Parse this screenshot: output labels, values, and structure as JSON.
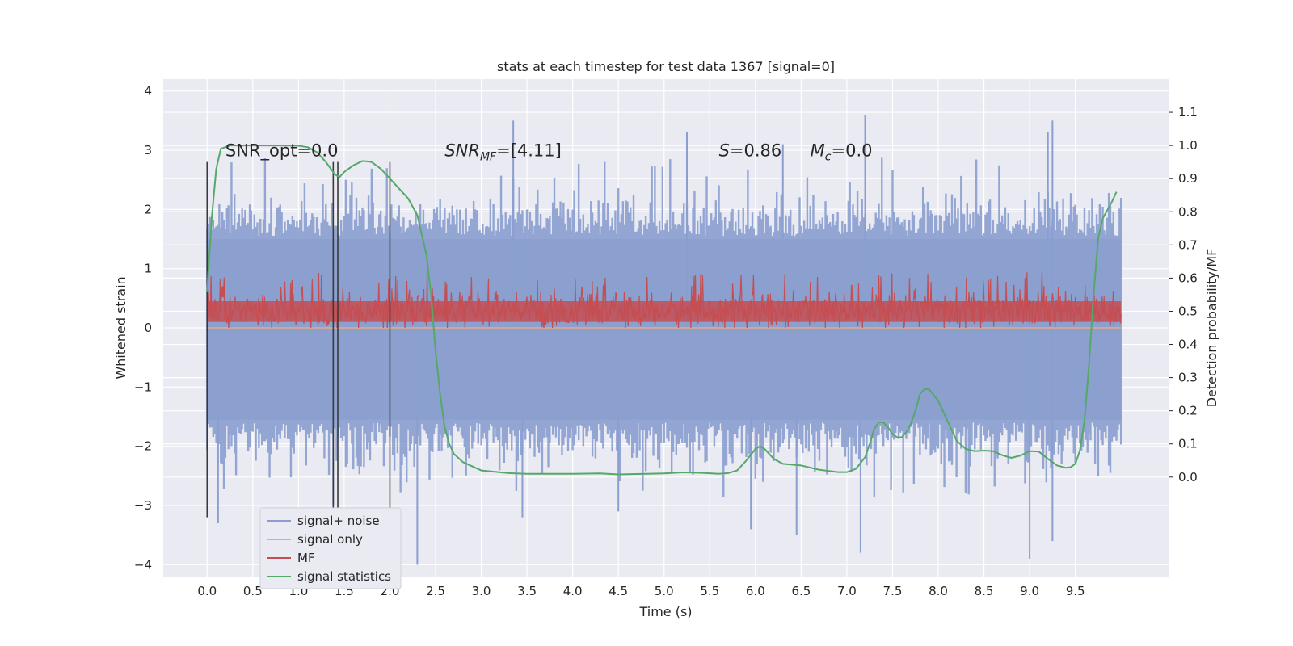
{
  "chart_data": {
    "type": "line",
    "title": "stats at each timestep for test data 1367 [signal=0]",
    "xlabel": "Time (s)",
    "ylabel": "Whitened strain",
    "y2label": "Detection probability/MF",
    "xlim": [
      -0.48,
      10.52
    ],
    "ylim": [
      -4.2,
      4.2
    ],
    "y2lim": [
      -0.3,
      1.2
    ],
    "x_ticks": [
      0.0,
      0.5,
      1.0,
      1.5,
      2.0,
      2.5,
      3.0,
      3.5,
      4.0,
      4.5,
      5.0,
      5.5,
      6.0,
      6.5,
      7.0,
      7.5,
      8.0,
      8.5,
      9.0,
      9.5
    ],
    "x_tick_labels": [
      "0.0",
      "0.5",
      "1.0",
      "1.5",
      "2.0",
      "2.5",
      "3.0",
      "3.5",
      "4.0",
      "4.5",
      "5.0",
      "5.5",
      "6.0",
      "6.5",
      "7.0",
      "7.5",
      "8.0",
      "8.5",
      "9.0",
      "9.5"
    ],
    "y_ticks": [
      -4,
      -3,
      -2,
      -1,
      0,
      1,
      2,
      3,
      4
    ],
    "y_tick_labels": [
      "−4",
      "−3",
      "−2",
      "−1",
      "0",
      "1",
      "2",
      "3",
      "4"
    ],
    "y2_ticks": [
      0.0,
      0.1,
      0.2,
      0.3,
      0.4,
      0.5,
      0.6,
      0.7,
      0.8,
      0.9,
      1.0,
      1.1
    ],
    "y2_tick_labels": [
      "0.0",
      "0.1",
      "0.2",
      "0.3",
      "0.4",
      "0.5",
      "0.6",
      "0.7",
      "0.8",
      "0.9",
      "1.0",
      "1.1"
    ],
    "grid": true,
    "legend_position": "lower-left",
    "noise_band": {
      "name": "signal+ noise",
      "axis": "left",
      "x_range": [
        0.0,
        10.0
      ],
      "typical_range": [
        -2.0,
        2.0
      ],
      "spikes": [
        {
          "x": 0.12,
          "y": -3.3
        },
        {
          "x": 1.38,
          "y": -3.0
        },
        {
          "x": 2.3,
          "y": -4.0
        },
        {
          "x": 3.35,
          "y": 3.5
        },
        {
          "x": 3.45,
          "y": -3.2
        },
        {
          "x": 4.5,
          "y": -3.1
        },
        {
          "x": 5.25,
          "y": 3.3
        },
        {
          "x": 5.95,
          "y": -3.4
        },
        {
          "x": 6.3,
          "y": 3.1
        },
        {
          "x": 6.45,
          "y": -3.5
        },
        {
          "x": 7.15,
          "y": -3.8
        },
        {
          "x": 7.2,
          "y": 3.6
        },
        {
          "x": 9.0,
          "y": -3.9
        },
        {
          "x": 9.2,
          "y": 3.3
        },
        {
          "x": 9.25,
          "y": -3.6
        },
        {
          "x": 9.25,
          "y": 3.5
        }
      ]
    },
    "signal_only": {
      "name": "signal only",
      "axis": "left",
      "x": [
        0.0,
        10.0
      ],
      "y": [
        0.0,
        0.0
      ]
    },
    "mf": {
      "name": "MF",
      "axis": "left",
      "x_range": [
        0.0,
        10.0
      ],
      "typical_range": [
        0.0,
        0.75
      ],
      "max": 0.95
    },
    "vertical_lines": [
      {
        "x": 0.0,
        "y": [
          -3.2,
          2.8
        ]
      },
      {
        "x": 1.38,
        "y": [
          -3.2,
          2.8
        ]
      },
      {
        "x": 1.43,
        "y": [
          -3.2,
          2.8
        ]
      },
      {
        "x": 2.0,
        "y": [
          -3.2,
          2.8
        ]
      }
    ],
    "series": [
      {
        "name": "signal statistics",
        "axis": "right",
        "x": [
          0.0,
          0.05,
          0.1,
          0.15,
          0.25,
          0.4,
          0.6,
          0.8,
          1.0,
          1.1,
          1.2,
          1.3,
          1.4,
          1.45,
          1.5,
          1.6,
          1.7,
          1.75,
          1.8,
          1.9,
          2.0,
          2.1,
          2.2,
          2.3,
          2.4,
          2.45,
          2.5,
          2.55,
          2.6,
          2.65,
          2.7,
          2.8,
          3.0,
          3.3,
          3.5,
          4.0,
          4.3,
          4.5,
          5.0,
          5.2,
          5.4,
          5.6,
          5.7,
          5.8,
          5.9,
          6.0,
          6.05,
          6.1,
          6.2,
          6.3,
          6.5,
          6.7,
          6.9,
          7.0,
          7.1,
          7.2,
          7.25,
          7.3,
          7.35,
          7.4,
          7.45,
          7.5,
          7.55,
          7.6,
          7.65,
          7.7,
          7.75,
          7.8,
          7.85,
          7.9,
          8.0,
          8.1,
          8.2,
          8.3,
          8.4,
          8.5,
          8.6,
          8.7,
          8.8,
          8.9,
          9.0,
          9.1,
          9.2,
          9.3,
          9.4,
          9.45,
          9.5,
          9.55,
          9.6,
          9.65,
          9.7,
          9.75,
          9.8,
          9.9,
          9.95
        ],
        "y": [
          0.56,
          0.78,
          0.93,
          0.99,
          1.0,
          1.0,
          1.0,
          1.0,
          0.999,
          0.995,
          0.98,
          0.95,
          0.912,
          0.905,
          0.92,
          0.94,
          0.953,
          0.952,
          0.95,
          0.93,
          0.9,
          0.87,
          0.84,
          0.79,
          0.67,
          0.55,
          0.38,
          0.25,
          0.15,
          0.1,
          0.07,
          0.045,
          0.02,
          0.012,
          0.01,
          0.01,
          0.011,
          0.008,
          0.011,
          0.014,
          0.013,
          0.01,
          0.012,
          0.02,
          0.05,
          0.085,
          0.093,
          0.085,
          0.055,
          0.04,
          0.035,
          0.022,
          0.015,
          0.015,
          0.025,
          0.06,
          0.1,
          0.145,
          0.165,
          0.165,
          0.15,
          0.13,
          0.12,
          0.12,
          0.135,
          0.16,
          0.2,
          0.25,
          0.265,
          0.265,
          0.23,
          0.17,
          0.11,
          0.085,
          0.078,
          0.08,
          0.078,
          0.066,
          0.058,
          0.065,
          0.078,
          0.077,
          0.055,
          0.035,
          0.028,
          0.03,
          0.04,
          0.08,
          0.17,
          0.34,
          0.55,
          0.72,
          0.78,
          0.83,
          0.86
        ]
      }
    ],
    "annotations": [
      {
        "text": "SNR_opt=0.0",
        "x": 0.2,
        "y": 2.9
      },
      {
        "text": "SNR",
        "sub": "MF",
        "rest": "=[4.11]",
        "italic": true,
        "x": 2.6,
        "y": 2.9
      },
      {
        "text": "S",
        "rest": "=0.86",
        "italic": true,
        "x": 5.6,
        "y": 2.9
      },
      {
        "text": "M",
        "sub": "c",
        "rest": "=0.0",
        "italic": true,
        "x": 6.6,
        "y": 2.9
      }
    ],
    "colors": {
      "noise": "#8a9fcf",
      "signal_only": "#e8a98a",
      "mf": "#c44e52",
      "stat": "#55a868",
      "vline": "#3a3a3a",
      "plot_bg": "#eaeaf2",
      "grid": "#ffffff"
    },
    "legend": [
      "signal+ noise",
      "signal only",
      "MF",
      "signal statistics"
    ]
  }
}
